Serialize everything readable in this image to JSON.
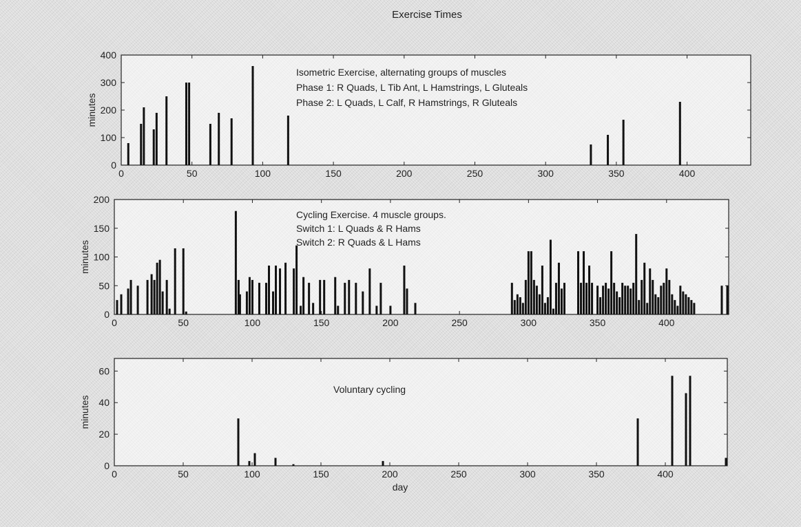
{
  "figure_title": "Exercise Times",
  "chart_data": [
    {
      "type": "bar",
      "ylabel": "minutes",
      "xlabel": "",
      "xlim": [
        0,
        445
      ],
      "ylim": [
        0,
        400
      ],
      "xticks": [
        0,
        50,
        100,
        150,
        200,
        250,
        300,
        350,
        400
      ],
      "yticks": [
        0,
        100,
        200,
        300,
        400
      ],
      "annotations": [
        "Isometric Exercise, alternating groups of muscles",
        "Phase 1: R Quads, L Tib Ant, L Hamstrings, L Gluteals",
        "Phase 2: L Quads, L Calf, R Hamstrings, R Gluteals"
      ],
      "x": [
        5,
        14,
        16,
        23,
        25,
        32,
        46,
        48,
        63,
        69,
        78,
        93,
        118,
        332,
        344,
        355,
        395
      ],
      "values": [
        80,
        150,
        210,
        130,
        190,
        250,
        300,
        300,
        150,
        190,
        170,
        360,
        180,
        75,
        110,
        165,
        230
      ]
    },
    {
      "type": "bar",
      "ylabel": "minutes",
      "xlabel": "",
      "xlim": [
        0,
        445
      ],
      "ylim": [
        0,
        200
      ],
      "xticks": [
        0,
        50,
        100,
        150,
        200,
        250,
        300,
        350,
        400
      ],
      "yticks": [
        0,
        50,
        100,
        150,
        200
      ],
      "annotations": [
        "Cycling Exercise. 4 muscle groups.",
        "Switch 1: L Quads & R Hams",
        "Switch 2: R Quads & L Hams"
      ],
      "x": [
        2,
        5,
        10,
        12,
        17,
        24,
        27,
        29,
        31,
        33,
        35,
        38,
        40,
        44,
        50,
        52,
        88,
        90,
        91,
        96,
        98,
        100,
        105,
        110,
        112,
        115,
        117,
        120,
        124,
        130,
        132,
        135,
        137,
        141,
        144,
        149,
        152,
        160,
        162,
        167,
        170,
        175,
        180,
        185,
        190,
        193,
        200,
        210,
        212,
        218,
        288,
        290,
        292,
        294,
        296,
        298,
        300,
        302,
        304,
        306,
        308,
        310,
        312,
        314,
        316,
        318,
        320,
        322,
        324,
        326,
        336,
        338,
        340,
        342,
        344,
        346,
        350,
        352,
        354,
        356,
        358,
        360,
        362,
        364,
        366,
        368,
        370,
        372,
        374,
        376,
        378,
        380,
        382,
        384,
        386,
        388,
        390,
        392,
        394,
        396,
        398,
        400,
        402,
        404,
        406,
        408,
        410,
        412,
        414,
        416,
        418,
        420,
        440,
        444
      ],
      "values": [
        25,
        35,
        45,
        60,
        50,
        60,
        70,
        60,
        90,
        95,
        40,
        60,
        10,
        115,
        115,
        5,
        180,
        60,
        35,
        40,
        65,
        60,
        55,
        55,
        85,
        40,
        85,
        80,
        90,
        80,
        120,
        15,
        65,
        55,
        20,
        60,
        60,
        65,
        15,
        55,
        60,
        55,
        40,
        80,
        15,
        55,
        15,
        85,
        45,
        20,
        55,
        25,
        35,
        30,
        20,
        60,
        110,
        110,
        60,
        50,
        35,
        85,
        20,
        30,
        130,
        10,
        55,
        90,
        45,
        55,
        110,
        55,
        110,
        55,
        85,
        55,
        50,
        30,
        50,
        55,
        45,
        110,
        55,
        40,
        30,
        55,
        50,
        50,
        45,
        55,
        140,
        25,
        60,
        90,
        20,
        80,
        60,
        35,
        30,
        50,
        55,
        80,
        60,
        35,
        25,
        15,
        50,
        40,
        35,
        30,
        25,
        20,
        50,
        50
      ]
    },
    {
      "type": "bar",
      "ylabel": "minutes",
      "xlabel": "day",
      "xlim": [
        0,
        445
      ],
      "ylim": [
        0,
        68
      ],
      "xticks": [
        0,
        50,
        100,
        150,
        200,
        250,
        300,
        350,
        400
      ],
      "yticks": [
        0,
        20,
        40,
        60
      ],
      "annotations": [
        "Voluntary cycling"
      ],
      "x": [
        90,
        98,
        102,
        117,
        130,
        195,
        380,
        405,
        415,
        418,
        444
      ],
      "values": [
        30,
        3,
        8,
        5,
        1,
        3,
        30,
        57,
        46,
        57,
        5
      ]
    }
  ]
}
